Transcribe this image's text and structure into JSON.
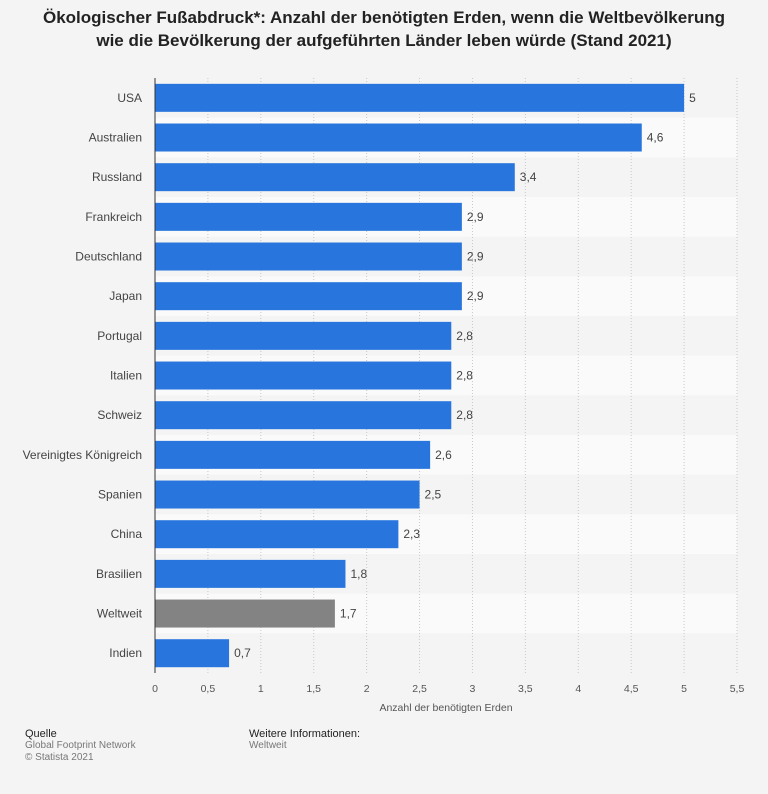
{
  "title": {
    "line1": "Ökologischer Fußabdruck*: Anzahl der benötigten Erden, wenn die Weltbevölkerung",
    "line2": "wie die Bevölkerung der aufgeführten Länder leben würde (Stand 2021)"
  },
  "colors": {
    "bar": "#2876dd",
    "highlight": "#838383"
  },
  "chart_data": {
    "type": "bar",
    "orientation": "horizontal",
    "categories": [
      "USA",
      "Australien",
      "Russland",
      "Frankreich",
      "Deutschland",
      "Japan",
      "Portugal",
      "Italien",
      "Schweiz",
      "Vereinigtes Königreich",
      "Spanien",
      "China",
      "Brasilien",
      "Weltweit",
      "Indien"
    ],
    "values": [
      5,
      4.6,
      3.4,
      2.9,
      2.9,
      2.9,
      2.8,
      2.8,
      2.8,
      2.6,
      2.5,
      2.3,
      1.8,
      1.7,
      0.7
    ],
    "value_labels": [
      "5",
      "4,6",
      "3,4",
      "2,9",
      "2,9",
      "2,9",
      "2,8",
      "2,8",
      "2,8",
      "2,6",
      "2,5",
      "2,3",
      "1,8",
      "1,7",
      "0,7"
    ],
    "highlight_category": "Weltweit",
    "xlabel": "Anzahl der benötigten Erden",
    "ylabel": "",
    "xlim": [
      0,
      5.5
    ],
    "xticks": [
      0,
      0.5,
      1,
      1.5,
      2,
      2.5,
      3,
      3.5,
      4,
      4.5,
      5,
      5.5
    ],
    "xtick_labels": [
      "0",
      "0,5",
      "1",
      "1,5",
      "2",
      "2,5",
      "3",
      "3,5",
      "4",
      "4,5",
      "5",
      "5,5"
    ],
    "grid": true
  },
  "footer": {
    "source_heading": "Quelle",
    "source_name": "Global Footprint Network",
    "copyright": "© Statista 2021",
    "info_heading": "Weitere Informationen:",
    "info_value": "Weltweit"
  }
}
